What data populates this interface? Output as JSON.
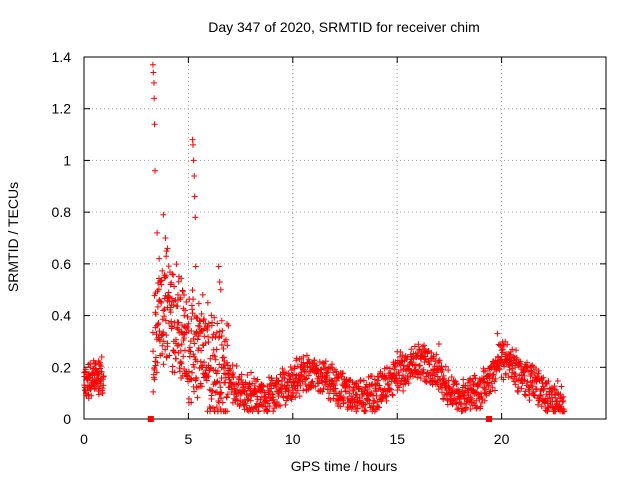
{
  "chart_data": {
    "type": "scatter",
    "title": "Day 347 of 2020, SRMTID for receiver chim",
    "xlabel": "GPS time / hours",
    "ylabel": "SRMTID / TECUs",
    "xlim": [
      0,
      25
    ],
    "ylim": [
      0,
      1.4
    ],
    "x_ticks": [
      0,
      5,
      10,
      15,
      20
    ],
    "y_ticks": [
      0,
      0.2,
      0.4,
      0.6,
      0.8,
      1,
      1.2,
      1.4
    ],
    "x_tick_labels": [
      "0",
      "5",
      "10",
      "15",
      "20"
    ],
    "y_tick_labels": [
      "0",
      "0.2",
      "0.4",
      "0.6",
      "0.8",
      "1",
      "1.2",
      "1.4"
    ],
    "grid": true,
    "marker": "+",
    "series_color": "#ff0000",
    "zero_markers": [
      3.2,
      19.4
    ],
    "sample_points": [
      [
        0.05,
        0.18
      ],
      [
        0.15,
        0.11
      ],
      [
        0.25,
        0.16
      ],
      [
        0.35,
        0.09
      ],
      [
        0.45,
        0.14
      ],
      [
        0.55,
        0.19
      ],
      [
        0.65,
        0.17
      ],
      [
        0.75,
        0.21
      ],
      [
        0.85,
        0.24
      ],
      [
        3.3,
        1.37
      ],
      [
        3.32,
        1.34
      ],
      [
        3.35,
        1.3
      ],
      [
        3.36,
        1.24
      ],
      [
        3.38,
        1.14
      ],
      [
        3.4,
        0.96
      ],
      [
        3.5,
        0.72
      ],
      [
        3.6,
        0.62
      ],
      [
        3.8,
        0.79
      ],
      [
        3.9,
        0.7
      ],
      [
        4.0,
        0.66
      ],
      [
        4.2,
        0.35
      ],
      [
        4.5,
        0.48
      ],
      [
        4.8,
        0.4
      ],
      [
        5.2,
        1.08
      ],
      [
        5.22,
        1.06
      ],
      [
        5.25,
        1.0
      ],
      [
        5.28,
        0.94
      ],
      [
        5.3,
        0.86
      ],
      [
        5.33,
        0.78
      ],
      [
        5.35,
        0.59
      ],
      [
        6.45,
        0.59
      ],
      [
        6.5,
        0.53
      ],
      [
        6.55,
        0.5
      ],
      [
        6.6,
        0.38
      ],
      [
        8.0,
        0.18
      ],
      [
        10.0,
        0.12
      ],
      [
        12.5,
        0.12
      ],
      [
        15.0,
        0.26
      ],
      [
        16.3,
        0.27
      ],
      [
        17.0,
        0.29
      ],
      [
        19.8,
        0.33
      ],
      [
        20.5,
        0.24
      ],
      [
        22.0,
        0.16
      ],
      [
        22.8,
        0.08
      ]
    ]
  }
}
